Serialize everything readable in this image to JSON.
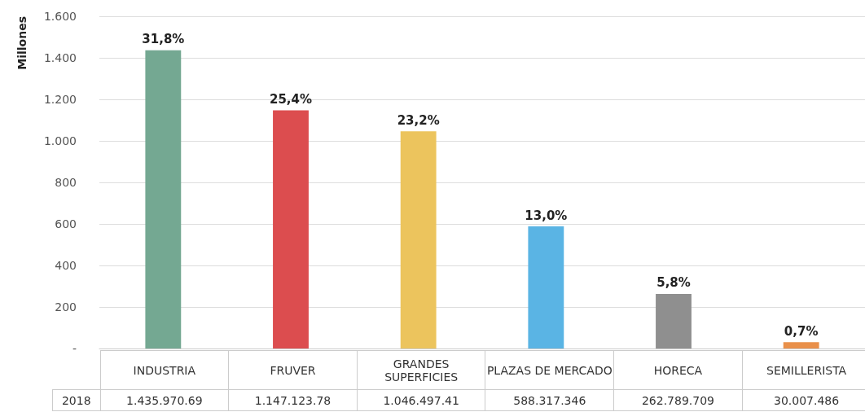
{
  "chart_data": {
    "type": "bar",
    "ylabel": "Millones",
    "categories": [
      "INDUSTRIA",
      "FRUVER",
      "GRANDES SUPERFICIES",
      "PLAZAS DE MERCADO",
      "HORECA",
      "SEMILLERISTA"
    ],
    "series": [
      {
        "name": "2018",
        "values": [
          1436,
          1147,
          1046,
          588,
          263,
          30
        ],
        "colors": [
          "#74a892",
          "#dc4d4f",
          "#ecc45d",
          "#5ab4e4",
          "#8f8f8f",
          "#e9904a"
        ]
      }
    ],
    "annotations": [
      {
        "text": "31,8%",
        "x": "INDUSTRIA",
        "y": 1436
      },
      {
        "text": "25,4%",
        "x": "FRUVER",
        "y": 1147
      },
      {
        "text": "23,2%",
        "x": "GRANDES SUPERFICIES",
        "y": 1046
      },
      {
        "text": "13,0%",
        "x": "PLAZAS DE MERCADO",
        "y": 588
      },
      {
        "text": "5,8%",
        "x": "HORECA",
        "y": 263
      },
      {
        "text": "0,7%",
        "x": "SEMILLERISTA",
        "y": 30
      },
      "1.435.970.69",
      "1.147.123.78",
      "1.046.497.41",
      "588.317.346",
      "262.789.709",
      "30.007.486"
    ],
    "ylim": [
      0,
      1600
    ],
    "yticks": [
      {
        "value": 0,
        "label": "-"
      },
      200,
      400,
      600,
      800,
      {
        "value": 1000,
        "label": "1.000"
      },
      {
        "value": 1200,
        "label": "1.200"
      },
      {
        "value": 1400,
        "label": "1.400"
      },
      {
        "value": 1600,
        "label": "1.600"
      }
    ],
    "grid": "y",
    "legend": false
  }
}
